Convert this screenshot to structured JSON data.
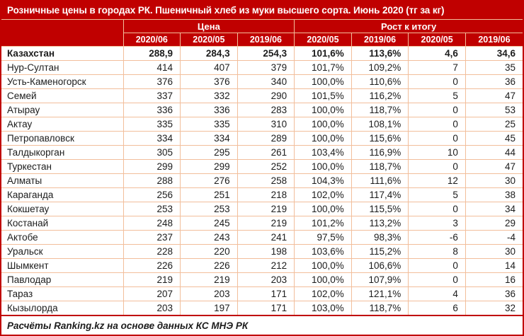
{
  "colors": {
    "accent_red": "#C00000",
    "grid_line": "#F2BE9B",
    "header_text": "#FFFFFF",
    "body_text": "#1C1C1C"
  },
  "chart_data": {
    "type": "table",
    "title": "Розничные цены в городах РК. Пшеничный хлеб из муки высшего сорта. Июнь 2020 (тг за кг)",
    "source_note": "Расчёты Ranking.kz на основе данных КС МНЭ РК",
    "column_groups": [
      {
        "label": "Цена",
        "span": 3
      },
      {
        "label": "Рост к итогу",
        "span": 4
      }
    ],
    "columns": [
      "2020/06",
      "2020/05",
      "2019/06",
      "2020/05",
      "2019/06",
      "2020/05",
      "2019/06"
    ],
    "rows": [
      {
        "name": "Казахстан",
        "bold": true,
        "values": [
          "288,9",
          "284,3",
          "254,3",
          "101,6%",
          "113,6%",
          "4,6",
          "34,6"
        ]
      },
      {
        "name": "Нур-Султан",
        "bold": false,
        "values": [
          "414",
          "407",
          "379",
          "101,7%",
          "109,2%",
          "7",
          "35"
        ]
      },
      {
        "name": "Усть-Каменогорск",
        "bold": false,
        "values": [
          "376",
          "376",
          "340",
          "100,0%",
          "110,6%",
          "0",
          "36"
        ]
      },
      {
        "name": "Семей",
        "bold": false,
        "values": [
          "337",
          "332",
          "290",
          "101,5%",
          "116,2%",
          "5",
          "47"
        ]
      },
      {
        "name": "Атырау",
        "bold": false,
        "values": [
          "336",
          "336",
          "283",
          "100,0%",
          "118,7%",
          "0",
          "53"
        ]
      },
      {
        "name": "Актау",
        "bold": false,
        "values": [
          "335",
          "335",
          "310",
          "100,0%",
          "108,1%",
          "0",
          "25"
        ]
      },
      {
        "name": "Петропавловск",
        "bold": false,
        "values": [
          "334",
          "334",
          "289",
          "100,0%",
          "115,6%",
          "0",
          "45"
        ]
      },
      {
        "name": "Талдыкорган",
        "bold": false,
        "values": [
          "305",
          "295",
          "261",
          "103,4%",
          "116,9%",
          "10",
          "44"
        ]
      },
      {
        "name": "Туркестан",
        "bold": false,
        "values": [
          "299",
          "299",
          "252",
          "100,0%",
          "118,7%",
          "0",
          "47"
        ]
      },
      {
        "name": "Алматы",
        "bold": false,
        "values": [
          "288",
          "276",
          "258",
          "104,3%",
          "111,6%",
          "12",
          "30"
        ]
      },
      {
        "name": "Караганда",
        "bold": false,
        "values": [
          "256",
          "251",
          "218",
          "102,0%",
          "117,4%",
          "5",
          "38"
        ]
      },
      {
        "name": "Кокшетау",
        "bold": false,
        "values": [
          "253",
          "253",
          "219",
          "100,0%",
          "115,5%",
          "0",
          "34"
        ]
      },
      {
        "name": "Костанай",
        "bold": false,
        "values": [
          "248",
          "245",
          "219",
          "101,2%",
          "113,2%",
          "3",
          "29"
        ]
      },
      {
        "name": "Актобе",
        "bold": false,
        "values": [
          "237",
          "243",
          "241",
          "97,5%",
          "98,3%",
          "-6",
          "-4"
        ]
      },
      {
        "name": "Уральск",
        "bold": false,
        "values": [
          "228",
          "220",
          "198",
          "103,6%",
          "115,2%",
          "8",
          "30"
        ]
      },
      {
        "name": "Шымкент",
        "bold": false,
        "values": [
          "226",
          "226",
          "212",
          "100,0%",
          "106,6%",
          "0",
          "14"
        ]
      },
      {
        "name": "Павлодар",
        "bold": false,
        "values": [
          "219",
          "219",
          "203",
          "100,0%",
          "107,9%",
          "0",
          "16"
        ]
      },
      {
        "name": "Тараз",
        "bold": false,
        "values": [
          "207",
          "203",
          "171",
          "102,0%",
          "121,1%",
          "4",
          "36"
        ]
      },
      {
        "name": "Кызылорда",
        "bold": false,
        "values": [
          "203",
          "197",
          "171",
          "103,0%",
          "118,7%",
          "6",
          "32"
        ]
      }
    ]
  }
}
